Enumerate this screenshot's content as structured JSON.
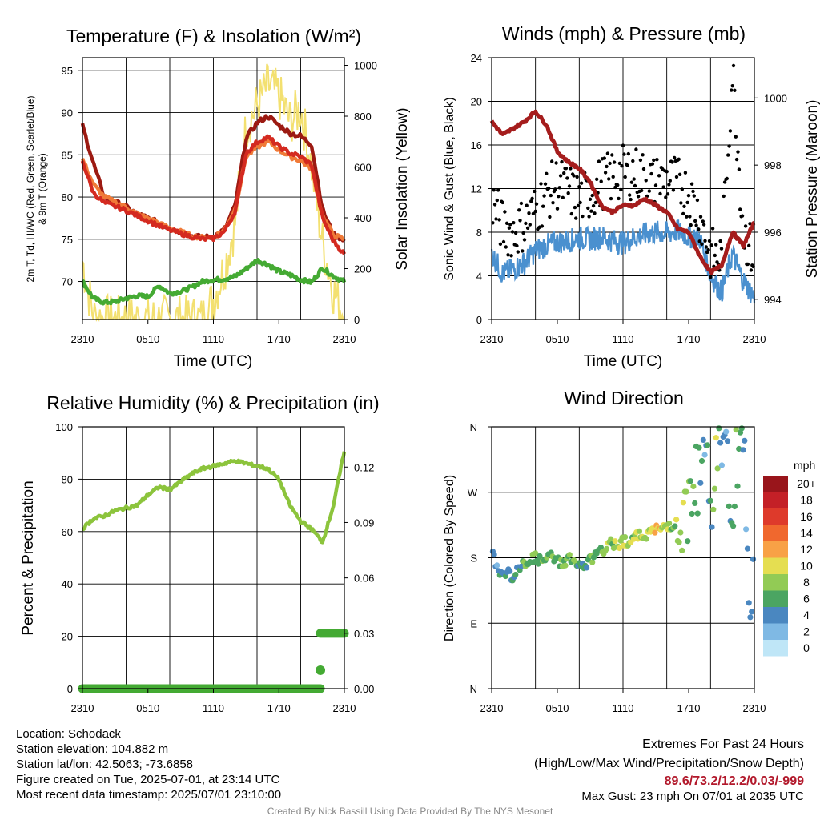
{
  "colors": {
    "dewpoint": "#44aa33",
    "temp_2m": "#d42a20",
    "heat_index": "#9c1a12",
    "temp_9m": "#f07a38",
    "insolation": "#f3e070",
    "sonic_wind": "#4a90cf",
    "gust": "#000000",
    "pressure": "#a51d1d",
    "rh": "#8cc43c",
    "precip": "#44aa33"
  },
  "panels": {
    "temperature": {
      "title": "Temperature (F) & Insolation (W/m²)",
      "ylabel_line1": "2m T, Td, HI/WC (Red, Green, Scarlet/Blue)",
      "ylabel_line2": "& 9m T (Orange)",
      "ylabel_right": "Solar Insolation (Yellow)",
      "xlabel": "Time (UTC)",
      "xticks": [
        "2310",
        "0510",
        "1110",
        "1710",
        "2310"
      ],
      "yticks_left": [
        "70",
        "75",
        "80",
        "85",
        "90",
        "95"
      ],
      "yticks_right": [
        "0",
        "200",
        "400",
        "600",
        "800",
        "1000"
      ]
    },
    "winds": {
      "title": "Winds (mph) & Pressure (mb)",
      "ylabel": "Sonic Wind & Gust (Blue, Black)",
      "ylabel_right": "Station Pressure (Maroon)",
      "xlabel": "Time (UTC)",
      "xticks": [
        "2310",
        "0510",
        "1110",
        "1710",
        "2310"
      ],
      "yticks_left": [
        "0",
        "4",
        "8",
        "12",
        "16",
        "20",
        "24"
      ],
      "yticks_right": [
        "994",
        "996",
        "998",
        "1000"
      ]
    },
    "humidity": {
      "title": "Relative Humidity (%) & Precipitation (in)",
      "ylabel": "Percent & Precipitation",
      "xticks": [
        "2310",
        "0510",
        "1110",
        "1710",
        "2310"
      ],
      "yticks_left": [
        "0",
        "20",
        "40",
        "60",
        "80",
        "100"
      ],
      "yticks_right": [
        "0.00",
        "0.03",
        "0.06",
        "0.09",
        "0.12"
      ]
    },
    "direction": {
      "title": "Wind Direction",
      "ylabel": "Direction (Colored By Speed)",
      "xticks": [
        "2310",
        "0510",
        "1110",
        "1710",
        "2310"
      ],
      "yticks": [
        "N",
        "E",
        "S",
        "W",
        "N"
      ],
      "legend_title": "mph",
      "legend_labels": [
        "20+",
        "18",
        "16",
        "14",
        "12",
        "10",
        "8",
        "6",
        "4",
        "2",
        "0"
      ],
      "legend_colors": [
        "#99151b",
        "#c42027",
        "#de3a2b",
        "#f0682e",
        "#f8a146",
        "#e5de51",
        "#92cb55",
        "#4ba562",
        "#4a87c0",
        "#7fb9e4",
        "#bfe6f7"
      ]
    }
  },
  "info": {
    "location": "Location: Schodack",
    "elevation": "Station elevation: 104.882 m",
    "latlon": "Station lat/lon: 42.5063; -73.6858",
    "created": "Figure created on Tue, 2025-07-01, at 23:14 UTC",
    "recent": "Most recent data timestamp: 2025/07/01 23:10:00",
    "extremes_title": "Extremes For Past 24 Hours",
    "extremes_sub": "(High/Low/Max Wind/Precipitation/Snow Depth)",
    "extremes_values": "89.6/73.2/12.2/0.03/-999",
    "max_gust": "Max Gust: 23 mph On 07/01 at 2035 UTC"
  },
  "credit": "Created By Nick Bassill Using Data Provided By The NYS Mesonet",
  "chart_data": [
    {
      "type": "line",
      "title": "Temperature (F) & Insolation (W/m²)",
      "xlabel": "Time (UTC)",
      "ylabel": "2m T, Td, HI/WC (Red, Green, Scarlet/Blue) & 9m T (Orange)",
      "ylabel_right": "Solar Insolation (Yellow)",
      "x_hours": [
        0,
        1,
        2,
        3,
        4,
        5,
        6,
        7,
        8,
        9,
        10,
        11,
        12,
        13,
        14,
        15,
        16,
        17,
        18,
        19,
        20,
        21,
        22,
        23,
        24
      ],
      "xticks": [
        "2310",
        "0510",
        "1110",
        "1710",
        "2310"
      ],
      "ylim": [
        65.5,
        96.5
      ],
      "ylim_right": [
        0,
        1030
      ],
      "series": [
        {
          "name": "2m T",
          "axis": "left",
          "values": [
            84.3,
            80.5,
            79.3,
            78.9,
            78.4,
            77.8,
            77.2,
            76.6,
            76.1,
            75.7,
            75.3,
            75.0,
            75.1,
            75.9,
            78.3,
            85.2,
            86.5,
            87.1,
            86.0,
            85.2,
            84.8,
            83.8,
            77.5,
            74.8,
            73.2
          ]
        },
        {
          "name": "9m T",
          "axis": "left",
          "values": [
            84.5,
            81.5,
            80.0,
            79.4,
            78.8,
            78.0,
            77.5,
            76.9,
            76.3,
            75.9,
            75.4,
            75.2,
            75.3,
            76.1,
            78.6,
            84.8,
            85.9,
            86.6,
            85.6,
            84.8,
            84.3,
            83.4,
            77.8,
            75.5,
            75.0
          ]
        },
        {
          "name": "HI/WC",
          "axis": "left",
          "values": [
            88.5,
            84.0,
            80.0,
            79.4,
            78.8,
            78.0,
            77.5,
            76.9,
            76.3,
            75.9,
            75.4,
            75.2,
            75.3,
            76.1,
            79.0,
            87.0,
            88.8,
            89.6,
            88.5,
            87.6,
            87.2,
            86.2,
            78.5,
            75.5,
            75.0
          ]
        },
        {
          "name": "Td",
          "axis": "left",
          "values": [
            70.0,
            68.0,
            67.5,
            67.6,
            68.0,
            68.3,
            68.2,
            69.5,
            68.6,
            68.8,
            69.3,
            70.0,
            70.2,
            70.3,
            70.6,
            71.5,
            72.5,
            72.0,
            71.2,
            70.8,
            70.2,
            69.9,
            71.6,
            70.6,
            70.0
          ]
        },
        {
          "name": "Solar Insolation",
          "axis": "right",
          "values": [
            230,
            10,
            2,
            0,
            0,
            0,
            0,
            0,
            0,
            0,
            0,
            0,
            80,
            200,
            380,
            760,
            840,
            920,
            880,
            780,
            830,
            600,
            300,
            110,
            20
          ]
        }
      ]
    },
    {
      "type": "line",
      "title": "Winds (mph) & Pressure (mb)",
      "xlabel": "Time (UTC)",
      "ylabel": "Sonic Wind & Gust (Blue, Black)",
      "ylabel_right": "Station Pressure (Maroon)",
      "x_hours": [
        0,
        1,
        2,
        3,
        4,
        5,
        6,
        7,
        8,
        9,
        10,
        11,
        12,
        13,
        14,
        15,
        16,
        17,
        18,
        19,
        20,
        21,
        22,
        23,
        24
      ],
      "xticks": [
        "2310",
        "0510",
        "1110",
        "1710",
        "2310"
      ],
      "ylim": [
        0,
        24
      ],
      "ylim_right": [
        993.4,
        1001.2
      ],
      "series": [
        {
          "name": "Sonic Wind",
          "axis": "left",
          "values": [
            6.0,
            4.2,
            4.6,
            5.2,
            6.3,
            6.8,
            7.1,
            7.2,
            7.5,
            7.3,
            7.6,
            7.2,
            7.0,
            7.5,
            7.8,
            8.0,
            7.9,
            8.1,
            7.6,
            7.5,
            4.0,
            2.5,
            6.0,
            3.5,
            2.0
          ]
        },
        {
          "name": "Gust",
          "axis": "left",
          "values": [
            11.0,
            8.5,
            8.0,
            8.8,
            10.0,
            11.5,
            12.5,
            11.8,
            11.0,
            11.5,
            12.5,
            13.0,
            13.5,
            13.5,
            13.0,
            12.5,
            12.8,
            12.5,
            11.5,
            9.5,
            6.0,
            5.5,
            23.0,
            8.0,
            5.5
          ]
        },
        {
          "name": "Station Pressure",
          "axis": "right",
          "values": [
            999.3,
            998.9,
            999.1,
            999.3,
            999.6,
            999.2,
            998.4,
            998.1,
            997.9,
            997.5,
            996.8,
            996.6,
            996.8,
            996.8,
            997.0,
            996.8,
            996.6,
            996.1,
            996.0,
            995.3,
            994.8,
            995.0,
            996.0,
            995.6,
            996.3
          ]
        }
      ]
    },
    {
      "type": "line",
      "title": "Relative Humidity (%) & Precipitation (in)",
      "ylabel": "Percent & Precipitation",
      "x_hours": [
        0,
        1,
        2,
        3,
        4,
        5,
        6,
        7,
        8,
        9,
        10,
        11,
        12,
        13,
        14,
        15,
        16,
        17,
        18,
        19,
        20,
        21,
        22,
        23,
        24
      ],
      "xticks": [
        "2310",
        "0510",
        "1110",
        "1710",
        "2310"
      ],
      "ylim": [
        0,
        100
      ],
      "ylim_right": [
        0,
        0.1418
      ],
      "series": [
        {
          "name": "RH",
          "axis": "left",
          "values": [
            61,
            65,
            66,
            68,
            69,
            70,
            74,
            77,
            76,
            79,
            82,
            84,
            85,
            86,
            87,
            86,
            85,
            84,
            80,
            70,
            64,
            61,
            56,
            70,
            91
          ]
        },
        {
          "name": "Precipitation",
          "axis": "right",
          "values": [
            0,
            0,
            0,
            0,
            0,
            0,
            0,
            0,
            0,
            0,
            0,
            0,
            0,
            0,
            0,
            0,
            0,
            0,
            0,
            0,
            0,
            0.01,
            0.03,
            0.03,
            0.03
          ]
        }
      ]
    },
    {
      "type": "scatter",
      "title": "Wind Direction",
      "ylabel": "Direction (Colored By Speed)",
      "x_hours": [
        0,
        0.5,
        1,
        1.5,
        2,
        2.5,
        3,
        3.5,
        4,
        4.5,
        5,
        5.5,
        6,
        6.5,
        7,
        7.5,
        8,
        8.5,
        9,
        9.5,
        10,
        10.5,
        11,
        11.5,
        12,
        12.5,
        13,
        13.5,
        14,
        14.5,
        15,
        15.5,
        16,
        16.5,
        17,
        17.5,
        18,
        18.5,
        19,
        19.5,
        20,
        20.5,
        21,
        21.5,
        22,
        22.5,
        23,
        23.5,
        24
      ],
      "direction_deg": [
        190,
        168,
        155,
        160,
        152,
        165,
        172,
        178,
        180,
        175,
        178,
        182,
        176,
        172,
        180,
        176,
        168,
        165,
        178,
        182,
        188,
        195,
        200,
        198,
        204,
        202,
        208,
        210,
        212,
        215,
        218,
        220,
        224,
        226,
        228,
        234,
        250,
        270,
        288,
        300,
        240,
        320,
        350,
        330,
        190,
        290,
        350,
        120,
        140
      ],
      "speed_mph": [
        5,
        4,
        4,
        4,
        4,
        5,
        6,
        7,
        7,
        6,
        7,
        7,
        6,
        7,
        8,
        7,
        6,
        5,
        7,
        7,
        7,
        8,
        8,
        8,
        9,
        9,
        8,
        9,
        9,
        9,
        11,
        10,
        9,
        8,
        8,
        8,
        7,
        6,
        5,
        4,
        5,
        10,
        4,
        3,
        6,
        8,
        4,
        3,
        4
      ],
      "ylim_deg": [
        0,
        360
      ],
      "xticks": [
        "2310",
        "0510",
        "1110",
        "1710",
        "2310"
      ],
      "yticks": [
        "N",
        "E",
        "S",
        "W",
        "N"
      ]
    }
  ]
}
